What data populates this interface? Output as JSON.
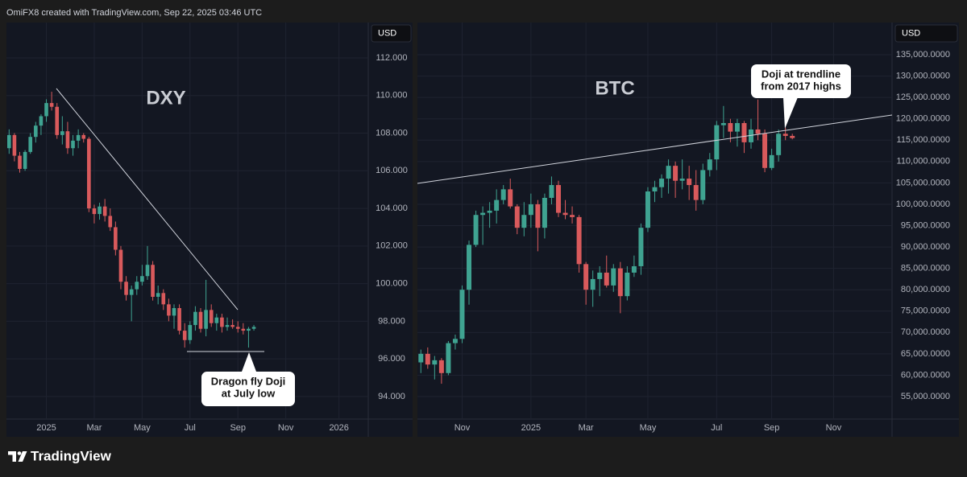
{
  "header": "OmiFX8 created with TradingView.com, Sep 22, 2025 03:46 UTC",
  "footer": "TradingView",
  "chart_data": [
    {
      "type": "candlestick",
      "title": "DXY",
      "currency": "USD",
      "annotation": [
        "Dragon fly Doji",
        "at July low"
      ],
      "up_color": "#3fa391",
      "down_color": "#d95a5c",
      "grid": true,
      "ylim": [
        92.8,
        113.88
      ],
      "yticks": [
        {
          "value": 94,
          "label": "94.000"
        },
        {
          "value": 96,
          "label": "96.000"
        },
        {
          "value": 98,
          "label": "98.000"
        },
        {
          "value": 100,
          "label": "100.000"
        },
        {
          "value": 102,
          "label": "102.000"
        },
        {
          "value": 104,
          "label": "104.000"
        },
        {
          "value": 106,
          "label": "106.000"
        },
        {
          "value": 108,
          "label": "108.000"
        },
        {
          "value": 110,
          "label": "110.000"
        },
        {
          "value": 112,
          "label": "112.000"
        }
      ],
      "categories": [
        null,
        null,
        null,
        null,
        null,
        null,
        null,
        "2025",
        null,
        null,
        null,
        null,
        null,
        null,
        null,
        null,
        "Mar",
        null,
        null,
        null,
        null,
        null,
        null,
        null,
        null,
        "May",
        null,
        null,
        null,
        null,
        null,
        null,
        null,
        null,
        "Jul",
        null,
        null,
        null,
        null,
        null,
        null,
        null,
        null,
        "Sep",
        null,
        null,
        null,
        null,
        null,
        null,
        null,
        null,
        "Nov",
        null,
        null,
        null,
        null,
        null,
        null,
        null,
        null,
        null,
        "2026",
        null,
        null,
        null,
        null,
        null
      ],
      "open": [
        107.2,
        107.9,
        106.8,
        106.1,
        107.0,
        107.8,
        108.4,
        108.9,
        109.6,
        109.4,
        107.9,
        108.1,
        107.2,
        107.6,
        107.9,
        107.7,
        104.0,
        103.7,
        104.1,
        103.6,
        103.0,
        101.8,
        100.1,
        99.4,
        99.7,
        100.1,
        100.4,
        101.0,
        99.3,
        99.5,
        98.9,
        98.3,
        98.7,
        97.5,
        97.0,
        97.8,
        98.5,
        97.6,
        98.6,
        97.9,
        98.2,
        97.7,
        97.8,
        97.7,
        97.6,
        97.5,
        97.6,
        null,
        null,
        null,
        null,
        null,
        null,
        null,
        null,
        null,
        null,
        null,
        null,
        null,
        null,
        null,
        null,
        null,
        null,
        null,
        null,
        null
      ],
      "high": [
        108.2,
        108.0,
        107.0,
        107.1,
        108.0,
        108.6,
        109.0,
        109.8,
        110.2,
        109.6,
        108.9,
        108.6,
        107.9,
        108.2,
        108.0,
        107.8,
        104.2,
        104.3,
        104.5,
        104.0,
        103.3,
        102.0,
        100.4,
        99.9,
        100.4,
        101.0,
        102.0,
        101.2,
        99.9,
        99.7,
        99.2,
        98.9,
        98.9,
        97.9,
        98.0,
        98.8,
        98.7,
        100.2,
        98.9,
        98.4,
        98.4,
        98.2,
        98.1,
        98.0,
        97.9,
        97.7,
        97.8,
        null,
        null,
        null,
        null,
        null,
        null,
        null,
        null,
        null,
        null,
        null,
        null,
        null,
        null,
        null,
        null,
        null,
        null,
        null,
        null,
        null
      ],
      "low": [
        106.9,
        106.5,
        105.9,
        106.0,
        106.9,
        107.5,
        107.9,
        108.6,
        109.2,
        107.7,
        107.4,
        106.9,
        106.8,
        107.2,
        107.5,
        103.8,
        103.2,
        103.4,
        103.3,
        102.8,
        101.5,
        99.7,
        99.1,
        98.0,
        99.4,
        99.9,
        100.2,
        99.1,
        98.9,
        98.6,
        98.0,
        97.6,
        97.3,
        96.6,
        96.8,
        97.5,
        97.4,
        97.2,
        97.7,
        97.5,
        97.4,
        97.5,
        97.6,
        97.4,
        97.3,
        96.6,
        97.5,
        null,
        null,
        null,
        null,
        null,
        null,
        null,
        null,
        null,
        null,
        null,
        null,
        null,
        null,
        null,
        null,
        null,
        null,
        null,
        null,
        null
      ],
      "close": [
        107.9,
        106.8,
        106.1,
        107.0,
        107.8,
        108.4,
        108.9,
        109.6,
        109.4,
        107.9,
        108.1,
        107.2,
        107.6,
        107.9,
        107.7,
        104.0,
        103.7,
        104.1,
        103.6,
        103.0,
        101.8,
        100.1,
        99.4,
        99.7,
        100.1,
        100.4,
        101.0,
        99.3,
        99.5,
        98.9,
        98.3,
        98.7,
        97.5,
        97.0,
        97.8,
        98.5,
        97.6,
        98.6,
        97.9,
        98.2,
        97.7,
        97.8,
        97.7,
        97.6,
        97.5,
        97.6,
        97.7,
        null,
        null,
        null,
        null,
        null,
        null,
        null,
        null,
        null,
        null,
        null,
        null,
        null,
        null,
        null,
        null,
        null,
        null,
        null,
        null,
        null
      ]
    },
    {
      "type": "candlestick",
      "title": "BTC",
      "currency": "USD",
      "annotation": [
        "Doji at trendline",
        "from 2017 highs"
      ],
      "up_color": "#3fa391",
      "down_color": "#d95a5c",
      "grid": true,
      "ylim": [
        49730,
        142530
      ],
      "yticks": [
        {
          "value": 55000,
          "label": "55,000.0000"
        },
        {
          "value": 60000,
          "label": "60,000.0000"
        },
        {
          "value": 65000,
          "label": "65,000.0000"
        },
        {
          "value": 70000,
          "label": "70,000.0000"
        },
        {
          "value": 75000,
          "label": "75,000.0000"
        },
        {
          "value": 80000,
          "label": "80,000.0000"
        },
        {
          "value": 85000,
          "label": "85,000.0000"
        },
        {
          "value": 90000,
          "label": "90,000.0000"
        },
        {
          "value": 95000,
          "label": "95,000.0000"
        },
        {
          "value": 100000,
          "label": "100,000.0000"
        },
        {
          "value": 105000,
          "label": "105,000.0000"
        },
        {
          "value": 110000,
          "label": "110,000.0000"
        },
        {
          "value": 115000,
          "label": "115,000.0000"
        },
        {
          "value": 120000,
          "label": "120,000.0000"
        },
        {
          "value": 125000,
          "label": "125,000.0000"
        },
        {
          "value": 130000,
          "label": "130,000.0000"
        },
        {
          "value": 135000,
          "label": "135,000.0000"
        }
      ],
      "categories": [
        null,
        null,
        null,
        null,
        null,
        null,
        "Nov",
        null,
        null,
        null,
        null,
        null,
        null,
        null,
        null,
        null,
        "2025",
        null,
        null,
        null,
        null,
        null,
        null,
        null,
        "Mar",
        null,
        null,
        null,
        null,
        null,
        null,
        null,
        null,
        "May",
        null,
        null,
        null,
        null,
        null,
        null,
        null,
        null,
        null,
        "Jul",
        null,
        null,
        null,
        null,
        null,
        null,
        null,
        "Sep",
        null,
        null,
        null,
        null,
        null,
        null,
        null,
        null,
        "Nov",
        null,
        null,
        null,
        null,
        null,
        null,
        null,
        null
      ],
      "open": [
        63000,
        65000,
        62500,
        63500,
        60500,
        67500,
        68500,
        80000,
        90500,
        97500,
        98000,
        98500,
        101000,
        103500,
        99500,
        94500,
        97500,
        100000,
        94500,
        101500,
        104500,
        98000,
        97500,
        97000,
        86000,
        80000,
        82500,
        84000,
        81000,
        85000,
        78500,
        84000,
        85500,
        94500,
        103000,
        104000,
        106000,
        109000,
        105500,
        106000,
        104500,
        101000,
        108000,
        110500,
        118500,
        119000,
        117000,
        119000,
        114500,
        117500,
        116500,
        108500,
        111500,
        116500,
        116000,
        null,
        null,
        null,
        null,
        null,
        null,
        null,
        null,
        null,
        null,
        null,
        null,
        null,
        null
      ],
      "high": [
        66000,
        66500,
        64500,
        64000,
        68000,
        69500,
        81000,
        91500,
        98500,
        99500,
        100500,
        103500,
        104500,
        106000,
        100000,
        100500,
        102500,
        101000,
        102500,
        106500,
        105500,
        101000,
        99500,
        97500,
        86500,
        84500,
        85500,
        88000,
        86000,
        86500,
        85500,
        88000,
        95500,
        104000,
        105500,
        107000,
        110500,
        110000,
        110500,
        109000,
        108000,
        109500,
        112000,
        119500,
        123000,
        120000,
        120000,
        119500,
        120000,
        124500,
        117500,
        113000,
        117500,
        117900,
        116500,
        null,
        null,
        null,
        null,
        null,
        null,
        null,
        null,
        null,
        null,
        null,
        null,
        null,
        null
      ],
      "low": [
        60500,
        61500,
        59000,
        58000,
        60000,
        66000,
        67500,
        76500,
        90000,
        90500,
        94500,
        95500,
        100000,
        99000,
        93000,
        92500,
        94500,
        89000,
        92000,
        100000,
        97000,
        96500,
        95500,
        84000,
        76500,
        76000,
        78500,
        80500,
        79500,
        74500,
        77500,
        83000,
        83500,
        93500,
        100500,
        101500,
        102500,
        101500,
        103500,
        101000,
        98500,
        100000,
        106500,
        108000,
        115500,
        114500,
        113500,
        112000,
        113000,
        115000,
        107500,
        108000,
        110000,
        115000,
        115200,
        null,
        null,
        null,
        null,
        null,
        null,
        null,
        null,
        null,
        null,
        null,
        null,
        null,
        null
      ],
      "close": [
        65000,
        62500,
        63500,
        60500,
        67500,
        68500,
        80000,
        90500,
        97500,
        98000,
        98500,
        101000,
        103500,
        99500,
        94500,
        97500,
        100000,
        94500,
        101500,
        104500,
        98000,
        97500,
        97000,
        86000,
        80000,
        82500,
        84000,
        81000,
        85000,
        78500,
        84000,
        85500,
        94500,
        103000,
        104000,
        106000,
        109000,
        105500,
        106000,
        104500,
        101000,
        108000,
        110500,
        118500,
        119000,
        117000,
        119000,
        114500,
        117500,
        116500,
        108500,
        111500,
        116500,
        116000,
        115500,
        null,
        null,
        null,
        null,
        null,
        null,
        null,
        null,
        null,
        null,
        null,
        null,
        null,
        null
      ]
    }
  ]
}
